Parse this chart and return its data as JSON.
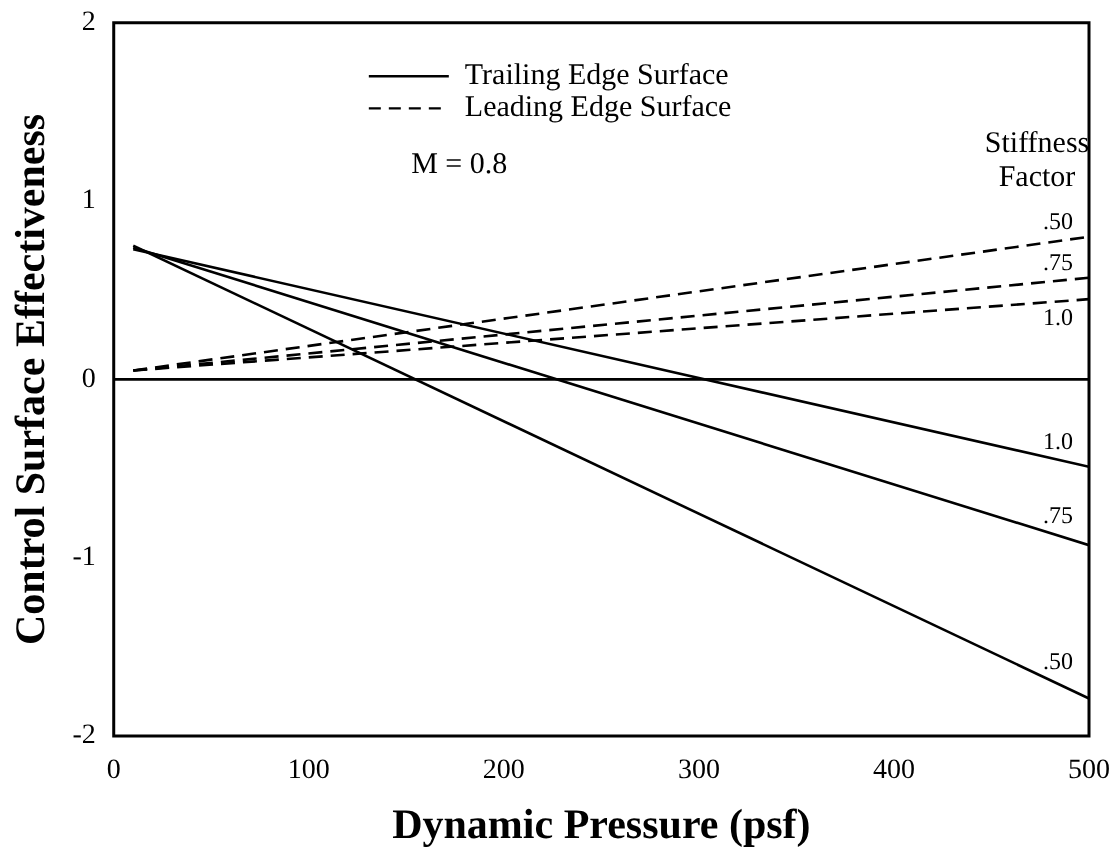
{
  "chart_data": {
    "type": "line",
    "xlabel": "Dynamic Pressure (psf)",
    "ylabel": "Control Surface Effectiveness",
    "xlim": [
      0,
      500
    ],
    "xticks": [
      0,
      100,
      200,
      300,
      400,
      500
    ],
    "ylim": [
      -2,
      2
    ],
    "yticks": [
      -2,
      -1,
      0,
      1,
      2
    ],
    "grid": false,
    "legend": false,
    "marker": "none",
    "x": [
      10,
      500
    ],
    "series": [
      {
        "name": "1.0",
        "color": "#000000",
        "line_style": "solid",
        "values": [
          0.73,
          -0.49
        ]
      },
      {
        "name": ".75",
        "color": "#000000",
        "line_style": "solid",
        "values": [
          0.74,
          -0.93
        ]
      },
      {
        "name": ".50",
        "color": "#000000",
        "line_style": "solid",
        "values": [
          0.75,
          -1.79
        ]
      },
      {
        "name": ".50",
        "color": "#000000",
        "line_style": "dashed",
        "values": [
          0.05,
          0.8
        ]
      },
      {
        "name": ".75",
        "color": "#000000",
        "line_style": "dashed",
        "values": [
          0.05,
          0.57
        ]
      },
      {
        "name": "1.0",
        "color": "#000000",
        "line_style": "dashed",
        "values": [
          0.05,
          0.45
        ]
      }
    ],
    "ref_lines": [
      {
        "axis": "y",
        "value": 0,
        "color": "#000000",
        "line_style": "solid"
      }
    ],
    "annotations": [
      "Trailing Edge Surface",
      "Leading Edge Surface",
      "M = 0.8",
      "Stiffness Factor"
    ]
  }
}
